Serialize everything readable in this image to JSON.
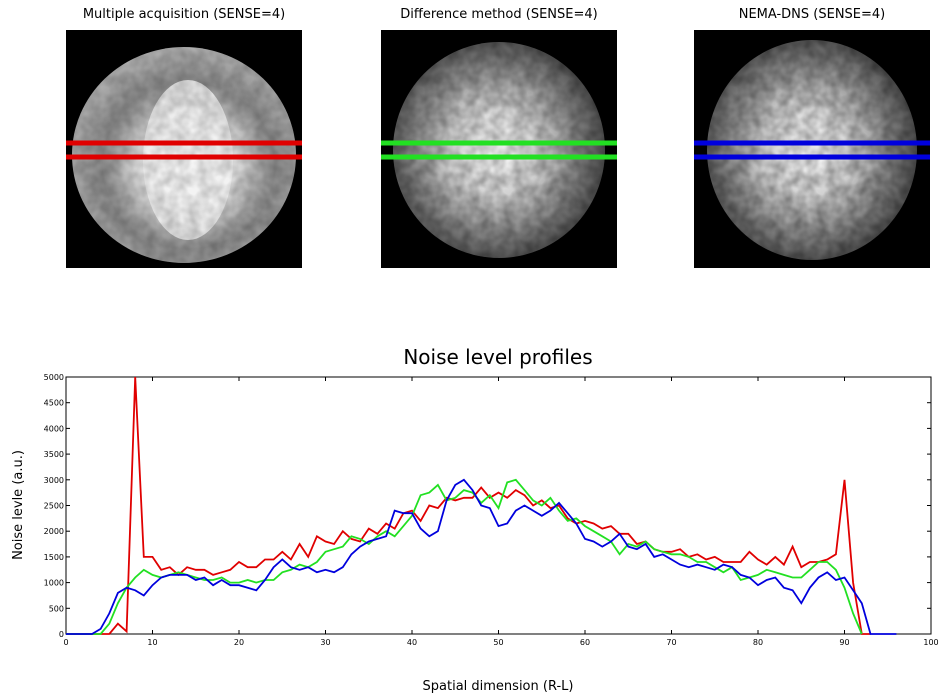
{
  "images": [
    {
      "title": "Multiple acquisition (SENSE=4)",
      "line_color": "#e00000"
    },
    {
      "title": "Difference method (SENSE=4)",
      "line_color": "#22e022"
    },
    {
      "title": "NEMA-DNS (SENSE=4)",
      "line_color": "#0000dd"
    }
  ],
  "chart_data": {
    "type": "line",
    "title": "Noise level profiles",
    "x_label": "Spatial dimension (R-L)",
    "y_label": "Noise levle (a.u.)",
    "xlim": [
      0,
      100
    ],
    "ylim": [
      0,
      5000
    ],
    "xticks": [
      0,
      10,
      20,
      30,
      40,
      50,
      60,
      70,
      80,
      90,
      100
    ],
    "yticks": [
      0,
      500,
      1000,
      1500,
      2000,
      2500,
      3000,
      3500,
      4000,
      4500,
      5000
    ],
    "x": [
      0,
      1,
      2,
      3,
      4,
      5,
      6,
      7,
      8,
      9,
      10,
      11,
      12,
      13,
      14,
      15,
      16,
      17,
      18,
      19,
      20,
      21,
      22,
      23,
      24,
      25,
      26,
      27,
      28,
      29,
      30,
      31,
      32,
      33,
      34,
      35,
      36,
      37,
      38,
      39,
      40,
      41,
      42,
      43,
      44,
      45,
      46,
      47,
      48,
      49,
      50,
      51,
      52,
      53,
      54,
      55,
      56,
      57,
      58,
      59,
      60,
      61,
      62,
      63,
      64,
      65,
      66,
      67,
      68,
      69,
      70,
      71,
      72,
      73,
      74,
      75,
      76,
      77,
      78,
      79,
      80,
      81,
      82,
      83,
      84,
      85,
      86,
      87,
      88,
      89,
      90,
      91,
      92,
      93,
      94,
      95,
      96
    ],
    "series": [
      {
        "name": "Multiple acquisition",
        "color": "#e00000",
        "values": [
          0,
          0,
          0,
          0,
          0,
          0,
          200,
          50,
          5000,
          1500,
          1500,
          1250,
          1300,
          1150,
          1300,
          1250,
          1250,
          1150,
          1200,
          1250,
          1400,
          1300,
          1300,
          1450,
          1450,
          1600,
          1450,
          1750,
          1500,
          1900,
          1800,
          1750,
          2000,
          1850,
          1800,
          2050,
          1950,
          2150,
          2050,
          2350,
          2400,
          2200,
          2500,
          2450,
          2650,
          2600,
          2650,
          2650,
          2850,
          2650,
          2750,
          2650,
          2800,
          2700,
          2500,
          2600,
          2450,
          2500,
          2250,
          2150,
          2200,
          2150,
          2050,
          2100,
          1950,
          1950,
          1750,
          1800,
          1650,
          1600,
          1600,
          1650,
          1500,
          1550,
          1450,
          1500,
          1400,
          1400,
          1400,
          1600,
          1450,
          1350,
          1500,
          1350,
          1700,
          1300,
          1400,
          1400,
          1450,
          1550,
          3000,
          1000,
          0,
          0,
          null,
          null,
          null
        ]
      },
      {
        "name": "Difference method",
        "color": "#22e022",
        "values": [
          0,
          0,
          0,
          0,
          0,
          200,
          600,
          900,
          1100,
          1250,
          1150,
          1100,
          1150,
          1200,
          1150,
          1100,
          1050,
          1050,
          1100,
          1000,
          1000,
          1050,
          1000,
          1050,
          1050,
          1200,
          1250,
          1350,
          1300,
          1400,
          1600,
          1650,
          1700,
          1900,
          1850,
          1750,
          1900,
          2000,
          1900,
          2100,
          2300,
          2700,
          2750,
          2900,
          2600,
          2650,
          2800,
          2750,
          2550,
          2700,
          2450,
          2950,
          3000,
          2800,
          2600,
          2500,
          2650,
          2400,
          2200,
          2250,
          2100,
          2000,
          1900,
          1800,
          1550,
          1750,
          1700,
          1800,
          1650,
          1600,
          1550,
          1550,
          1500,
          1400,
          1400,
          1300,
          1200,
          1300,
          1050,
          1100,
          1150,
          1250,
          1200,
          1150,
          1100,
          1100,
          1250,
          1400,
          1400,
          1250,
          900,
          400,
          0,
          null,
          null,
          null,
          null
        ]
      },
      {
        "name": "NEMA-DNS",
        "color": "#0000dd",
        "values": [
          0,
          0,
          0,
          0,
          100,
          400,
          800,
          900,
          850,
          750,
          950,
          1100,
          1150,
          1150,
          1150,
          1050,
          1100,
          950,
          1050,
          950,
          950,
          900,
          850,
          1050,
          1300,
          1450,
          1300,
          1250,
          1300,
          1200,
          1250,
          1200,
          1300,
          1550,
          1700,
          1800,
          1850,
          1900,
          2400,
          2350,
          2350,
          2050,
          1900,
          2000,
          2600,
          2900,
          3000,
          2800,
          2500,
          2450,
          2100,
          2150,
          2400,
          2500,
          2400,
          2300,
          2400,
          2550,
          2350,
          2150,
          1850,
          1800,
          1700,
          1800,
          1950,
          1700,
          1650,
          1750,
          1500,
          1550,
          1450,
          1350,
          1300,
          1350,
          1300,
          1250,
          1350,
          1300,
          1150,
          1100,
          950,
          1050,
          1100,
          900,
          850,
          600,
          900,
          1100,
          1200,
          1050,
          1100,
          850,
          600,
          0,
          0,
          0,
          0
        ]
      }
    ]
  }
}
